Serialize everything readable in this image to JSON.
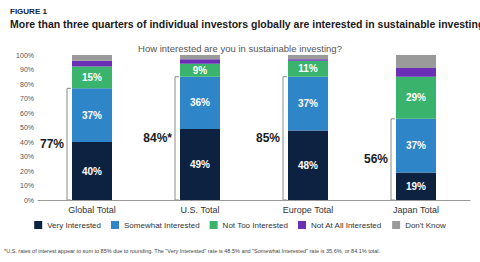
{
  "chart_data": {
    "type": "bar",
    "stacked": true,
    "figure_label": "FIGURE 1",
    "title": "More than three quarters of individual investors globally are interested in sustainable investing",
    "subtitle": "How interested are you in sustainable investing?",
    "categories": [
      "Global Total",
      "U.S. Total",
      "Europe Total",
      "Japan Total"
    ],
    "series": [
      {
        "name": "Very Interested",
        "color": "#0d2240",
        "values": [
          40,
          49,
          48,
          19
        ],
        "data_labels": true,
        "value_labels": [
          "40%",
          "49%",
          "48%",
          "19%"
        ]
      },
      {
        "name": "Somewhat Interested",
        "color": "#2e86c8",
        "values": [
          37,
          36,
          37,
          37
        ],
        "data_labels": true,
        "value_labels": [
          "37%",
          "36%",
          "37%",
          "37%"
        ]
      },
      {
        "name": "Not Too Interested",
        "color": "#3ab36c",
        "values": [
          15,
          9,
          11,
          29
        ],
        "data_labels": true,
        "value_labels": [
          "15%",
          "9%",
          "11%",
          "29%"
        ]
      },
      {
        "name": "Not At All Interested",
        "color": "#6a2fb5",
        "values": [
          4,
          3,
          1,
          6
        ],
        "data_labels": false
      },
      {
        "name": "Don't Know",
        "color": "#9a9a9a",
        "values": [
          4,
          3,
          3,
          9
        ],
        "data_labels": false
      }
    ],
    "ylim": [
      0,
      100
    ],
    "yticks": [
      {
        "value": 0,
        "label": "0%"
      },
      {
        "value": 10,
        "label": "10%"
      },
      {
        "value": 20,
        "label": "20%"
      },
      {
        "value": 30,
        "label": "30%"
      },
      {
        "value": 40,
        "label": "40%"
      },
      {
        "value": 50,
        "label": "50%"
      },
      {
        "value": 60,
        "label": "60%"
      },
      {
        "value": 70,
        "label": "70%"
      },
      {
        "value": 80,
        "label": "80%"
      },
      {
        "value": 90,
        "label": "90%"
      },
      {
        "value": 100,
        "label": "100%"
      }
    ],
    "grid": false,
    "legend": "bottom",
    "annotations": [
      {
        "text": "77%",
        "category": "Global Total",
        "spans": [
          "Very Interested",
          "Somewhat Interested"
        ]
      },
      {
        "text": "84%*",
        "category": "U.S. Total",
        "spans": [
          "Very Interested",
          "Somewhat Interested"
        ]
      },
      {
        "text": "85%",
        "category": "Europe Total",
        "spans": [
          "Very Interested",
          "Somewhat Interested"
        ]
      },
      {
        "text": "56%",
        "category": "Japan Total",
        "spans": [
          "Very Interested",
          "Somewhat Interested"
        ]
      }
    ],
    "note": "*U.S. rates of interest appear to sum to 85% due to rounding. The \"Very Interested\" rate is 48.5% and \"Somewhat Interested\" rate is 35.6%, or 84.1% total."
  }
}
